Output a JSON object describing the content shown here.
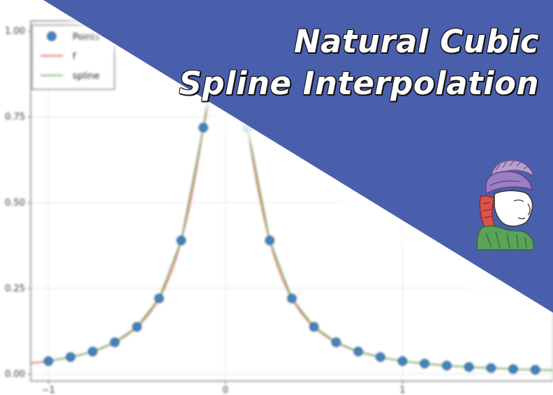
{
  "banner": {
    "title_line1": "Natural Cubic",
    "title_line2": "Spline Interpolation",
    "background_color": "#4a5fac",
    "logo_icon": "athena-helmet-head-logo"
  },
  "chart_data": {
    "type": "line",
    "xlim": [
      -1.1,
      1.85
    ],
    "ylim": [
      -0.02,
      1.03
    ],
    "xticks": [
      -1,
      0,
      1
    ],
    "xtick_labels": [
      "−1",
      "0",
      "1"
    ],
    "yticks": [
      0.0,
      0.25,
      0.5,
      0.75,
      1.0
    ],
    "ytick_labels": [
      "0.00",
      "0.25",
      "0.50",
      "0.75",
      "1.00"
    ],
    "grid": true,
    "legend_position": "top-left",
    "legend": [
      {
        "label": "Points",
        "marker": "circle",
        "color": "#3e86c8"
      },
      {
        "label": "f",
        "marker": "line",
        "color": "#e46d5c"
      },
      {
        "label": "spline",
        "marker": "line",
        "color": "#7ab87a"
      }
    ],
    "series": [
      {
        "name": "Points",
        "style": "scatter",
        "color": "#3e86c8",
        "x": [
          -1.0,
          -0.875,
          -0.75,
          -0.625,
          -0.5,
          -0.375,
          -0.25,
          -0.125,
          0.125,
          0.25,
          0.375,
          0.5,
          0.625,
          0.75,
          0.875,
          1.0,
          1.125,
          1.25,
          1.375,
          1.5,
          1.625,
          1.75
        ],
        "y": [
          0.038,
          0.05,
          0.066,
          0.093,
          0.138,
          0.221,
          0.39,
          0.719,
          0.719,
          0.39,
          0.221,
          0.138,
          0.093,
          0.066,
          0.05,
          0.038,
          0.031,
          0.025,
          0.021,
          0.018,
          0.015,
          0.013
        ]
      },
      {
        "name": "f",
        "style": "line",
        "color": "#e46d5c",
        "function": "1/(1+25x^2)"
      },
      {
        "name": "spline",
        "style": "line",
        "color": "#7ab87a",
        "x": [
          -1.0,
          -0.875,
          -0.75,
          -0.625,
          -0.5,
          -0.375,
          -0.25,
          -0.125,
          0.0,
          0.125,
          0.25,
          0.375,
          0.5,
          0.625,
          0.75,
          0.875,
          1.0,
          1.125,
          1.25,
          1.375,
          1.5,
          1.625,
          1.75,
          1.85
        ],
        "y": [
          0.038,
          0.05,
          0.066,
          0.093,
          0.138,
          0.221,
          0.39,
          0.719,
          1.0,
          0.719,
          0.39,
          0.221,
          0.138,
          0.093,
          0.066,
          0.05,
          0.038,
          0.031,
          0.025,
          0.021,
          0.018,
          0.015,
          0.013,
          0.012
        ]
      }
    ]
  }
}
